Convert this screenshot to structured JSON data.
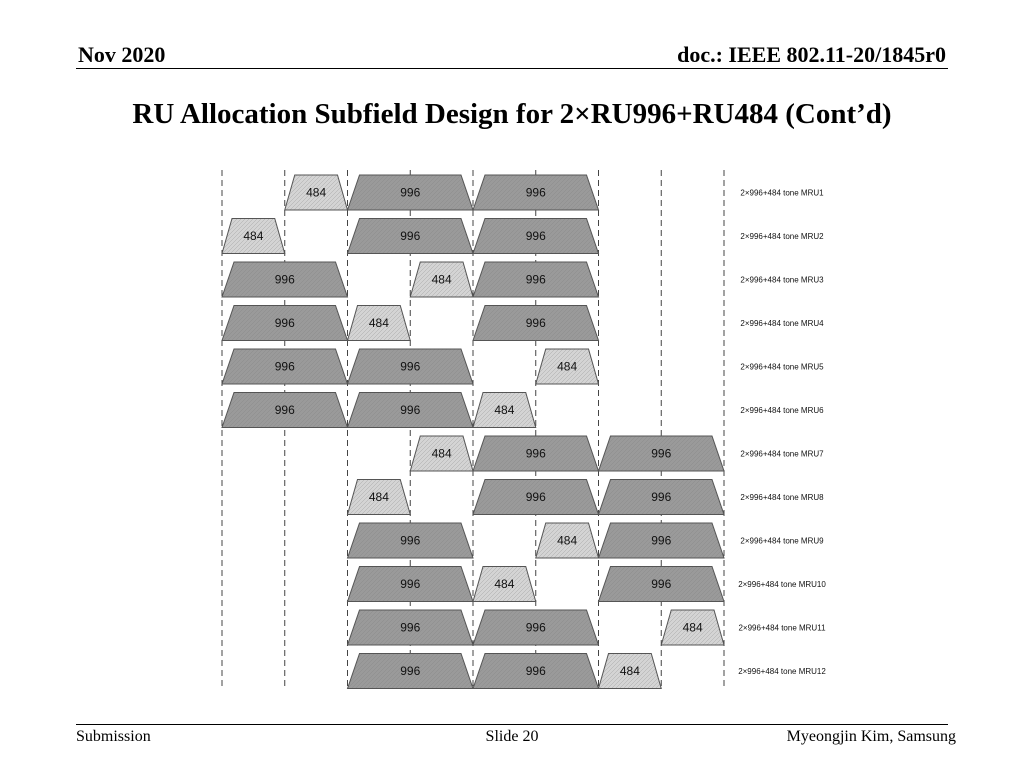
{
  "header": {
    "date": "Nov 2020",
    "doc": "doc.: IEEE 802.11-20/1845r0"
  },
  "title": "RU Allocation Subfield Design for 2×RU996+RU484 (Cont’d)",
  "footer": {
    "left": "Submission",
    "center": "Slide 20",
    "right": "Myeongjin Kim, Samsung"
  },
  "colors": {
    "ru996_fill": "#9a9a9a",
    "ru484_fill": "#d4d4d4",
    "outline": "#555555"
  },
  "mru_rows": [
    {
      "label": "2×996+484 tone MRU1",
      "blocks": [
        {
          "start": 1,
          "span": 1,
          "text": "484"
        },
        {
          "start": 2,
          "span": 2,
          "text": "996"
        },
        {
          "start": 4,
          "span": 2,
          "text": "996"
        }
      ]
    },
    {
      "label": "2×996+484  tone MRU2",
      "blocks": [
        {
          "start": 0,
          "span": 1,
          "text": "484"
        },
        {
          "start": 2,
          "span": 2,
          "text": "996"
        },
        {
          "start": 4,
          "span": 2,
          "text": "996"
        }
      ]
    },
    {
      "label": "2×996+484  tone MRU3",
      "blocks": [
        {
          "start": 0,
          "span": 2,
          "text": "996"
        },
        {
          "start": 3,
          "span": 1,
          "text": "484"
        },
        {
          "start": 4,
          "span": 2,
          "text": "996"
        }
      ]
    },
    {
      "label": "2×996+484  tone MRU4",
      "blocks": [
        {
          "start": 0,
          "span": 2,
          "text": "996"
        },
        {
          "start": 2,
          "span": 1,
          "text": "484"
        },
        {
          "start": 4,
          "span": 2,
          "text": "996"
        }
      ]
    },
    {
      "label": "2×996+484  tone MRU5",
      "blocks": [
        {
          "start": 0,
          "span": 2,
          "text": "996"
        },
        {
          "start": 2,
          "span": 2,
          "text": "996"
        },
        {
          "start": 5,
          "span": 1,
          "text": "484"
        }
      ]
    },
    {
      "label": "2×996+484 tone MRU6",
      "blocks": [
        {
          "start": 0,
          "span": 2,
          "text": "996"
        },
        {
          "start": 2,
          "span": 2,
          "text": "996"
        },
        {
          "start": 4,
          "span": 1,
          "text": "484"
        }
      ]
    },
    {
      "label": "2×996+484 tone MRU7",
      "blocks": [
        {
          "start": 3,
          "span": 1,
          "text": "484"
        },
        {
          "start": 4,
          "span": 2,
          "text": "996"
        },
        {
          "start": 6,
          "span": 2,
          "text": "996"
        }
      ]
    },
    {
      "label": "2×996+484 tone MRU8",
      "blocks": [
        {
          "start": 2,
          "span": 1,
          "text": "484"
        },
        {
          "start": 4,
          "span": 2,
          "text": "996"
        },
        {
          "start": 6,
          "span": 2,
          "text": "996"
        }
      ]
    },
    {
      "label": "2×996+484 tone MRU9",
      "blocks": [
        {
          "start": 2,
          "span": 2,
          "text": "996"
        },
        {
          "start": 5,
          "span": 1,
          "text": "484"
        },
        {
          "start": 6,
          "span": 2,
          "text": "996"
        }
      ]
    },
    {
      "label": "2×996+484 tone MRU10",
      "blocks": [
        {
          "start": 2,
          "span": 2,
          "text": "996"
        },
        {
          "start": 4,
          "span": 1,
          "text": "484"
        },
        {
          "start": 6,
          "span": 2,
          "text": "996"
        }
      ]
    },
    {
      "label": "2×996+484 tone MRU11",
      "blocks": [
        {
          "start": 2,
          "span": 2,
          "text": "996"
        },
        {
          "start": 4,
          "span": 2,
          "text": "996"
        },
        {
          "start": 7,
          "span": 1,
          "text": "484"
        }
      ]
    },
    {
      "label": "2×996+484 tone MRU12",
      "blocks": [
        {
          "start": 2,
          "span": 2,
          "text": "996"
        },
        {
          "start": 4,
          "span": 2,
          "text": "996"
        },
        {
          "start": 6,
          "span": 1,
          "text": "484"
        }
      ]
    }
  ]
}
